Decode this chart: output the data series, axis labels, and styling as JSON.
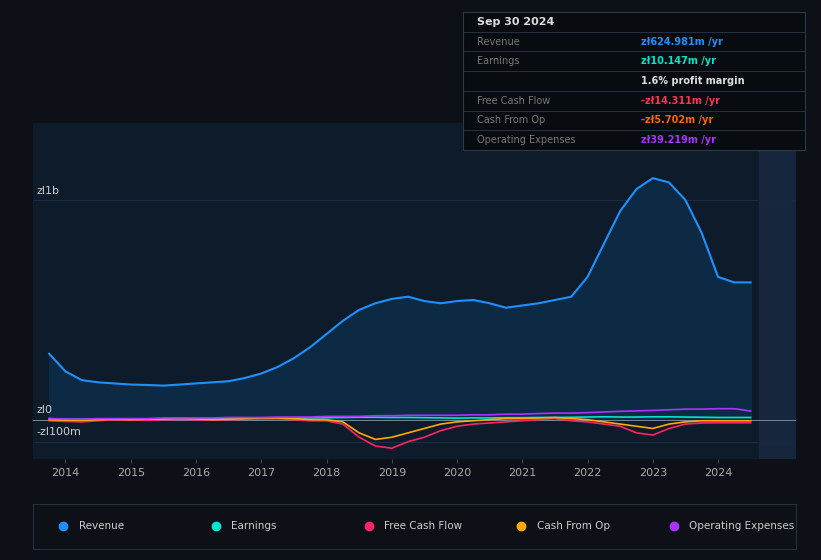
{
  "bg_color": "#0d1117",
  "plot_bg_color": "#0d1b2a",
  "grid_color": "#1e3048",
  "title_box": {
    "date": "Sep 30 2024",
    "box_bg": "#080c10",
    "box_border": "#2a3a4a",
    "label_color": "#777777",
    "title_color": "#dddddd"
  },
  "ytick_labels": [
    "zl1b",
    "zl0",
    "-zl100m"
  ],
  "ytick_values": [
    1000,
    0,
    -100
  ],
  "xtick_labels": [
    "2014",
    "2015",
    "2016",
    "2017",
    "2018",
    "2019",
    "2020",
    "2021",
    "2022",
    "2023",
    "2024"
  ],
  "ylim": [
    -180,
    1350
  ],
  "xlim": [
    2013.5,
    2025.2
  ],
  "series_Revenue_color": "#1e90ff",
  "series_Revenue_fill": "#0d2a45",
  "series_Earnings_color": "#00e5cc",
  "series_FCF_color": "#ff2266",
  "series_CashOp_color": "#ffaa00",
  "series_OpEx_color": "#aa33ff",
  "revenue_x": [
    2013.75,
    2014.0,
    2014.25,
    2014.5,
    2014.75,
    2015.0,
    2015.25,
    2015.5,
    2015.75,
    2016.0,
    2016.25,
    2016.5,
    2016.75,
    2017.0,
    2017.25,
    2017.5,
    2017.75,
    2018.0,
    2018.25,
    2018.5,
    2018.75,
    2019.0,
    2019.25,
    2019.5,
    2019.75,
    2020.0,
    2020.25,
    2020.5,
    2020.75,
    2021.0,
    2021.25,
    2021.5,
    2021.75,
    2022.0,
    2022.25,
    2022.5,
    2022.75,
    2023.0,
    2023.25,
    2023.5,
    2023.75,
    2024.0,
    2024.25,
    2024.5
  ],
  "revenue_y": [
    300,
    220,
    180,
    170,
    165,
    160,
    158,
    155,
    160,
    165,
    170,
    175,
    190,
    210,
    240,
    280,
    330,
    390,
    450,
    500,
    530,
    550,
    560,
    540,
    530,
    540,
    545,
    530,
    510,
    520,
    530,
    545,
    560,
    650,
    800,
    950,
    1050,
    1100,
    1080,
    1000,
    850,
    650,
    625,
    625
  ],
  "earnings_x": [
    2013.75,
    2014.0,
    2014.25,
    2014.5,
    2014.75,
    2015.0,
    2015.25,
    2015.5,
    2015.75,
    2016.0,
    2016.25,
    2016.5,
    2016.75,
    2017.0,
    2017.25,
    2017.5,
    2017.75,
    2018.0,
    2018.25,
    2018.5,
    2018.75,
    2019.0,
    2019.25,
    2019.5,
    2019.75,
    2020.0,
    2020.25,
    2020.5,
    2020.75,
    2021.0,
    2021.25,
    2021.5,
    2021.75,
    2022.0,
    2022.25,
    2022.5,
    2022.75,
    2023.0,
    2023.25,
    2023.5,
    2023.75,
    2024.0,
    2024.25,
    2024.5
  ],
  "earnings_y": [
    5,
    2,
    2,
    3,
    2,
    2,
    3,
    3,
    2,
    3,
    4,
    4,
    5,
    5,
    6,
    7,
    8,
    9,
    10,
    11,
    11,
    10,
    10,
    9,
    8,
    7,
    8,
    8,
    9,
    9,
    10,
    10,
    11,
    12,
    13,
    12,
    12,
    13,
    13,
    12,
    11,
    10,
    10,
    10
  ],
  "fcf_x": [
    2013.75,
    2014.0,
    2014.25,
    2014.5,
    2014.75,
    2015.0,
    2015.25,
    2015.5,
    2015.75,
    2016.0,
    2016.25,
    2016.5,
    2016.75,
    2017.0,
    2017.25,
    2017.5,
    2017.75,
    2018.0,
    2018.25,
    2018.5,
    2018.75,
    2019.0,
    2019.25,
    2019.5,
    2019.75,
    2020.0,
    2020.25,
    2020.5,
    2020.75,
    2021.0,
    2021.25,
    2021.5,
    2021.75,
    2022.0,
    2022.25,
    2022.5,
    2022.75,
    2023.0,
    2023.25,
    2023.5,
    2023.75,
    2024.0,
    2024.25,
    2024.5
  ],
  "fcf_y": [
    -5,
    -8,
    -10,
    -5,
    0,
    -2,
    -3,
    0,
    2,
    0,
    -2,
    0,
    2,
    5,
    5,
    0,
    -5,
    -5,
    -20,
    -80,
    -120,
    -130,
    -100,
    -80,
    -50,
    -30,
    -20,
    -15,
    -10,
    -5,
    0,
    5,
    -5,
    -10,
    -20,
    -30,
    -60,
    -70,
    -40,
    -20,
    -15,
    -14,
    -14,
    -14
  ],
  "cop_x": [
    2013.75,
    2014.0,
    2014.25,
    2014.5,
    2014.75,
    2015.0,
    2015.25,
    2015.5,
    2015.75,
    2016.0,
    2016.25,
    2016.5,
    2016.75,
    2017.0,
    2017.25,
    2017.5,
    2017.75,
    2018.0,
    2018.25,
    2018.5,
    2018.75,
    2019.0,
    2019.25,
    2019.5,
    2019.75,
    2020.0,
    2020.25,
    2020.5,
    2020.75,
    2021.0,
    2021.25,
    2021.5,
    2021.75,
    2022.0,
    2022.25,
    2022.5,
    2022.75,
    2023.0,
    2023.25,
    2023.5,
    2023.75,
    2024.0,
    2024.25,
    2024.5
  ],
  "cop_y": [
    0,
    -2,
    -3,
    0,
    2,
    0,
    2,
    3,
    5,
    3,
    0,
    2,
    5,
    8,
    8,
    5,
    0,
    0,
    -10,
    -60,
    -90,
    -80,
    -60,
    -40,
    -20,
    -10,
    -5,
    0,
    5,
    5,
    8,
    10,
    5,
    0,
    -10,
    -20,
    -30,
    -40,
    -20,
    -10,
    -5,
    -5,
    -5,
    -5
  ],
  "opex_x": [
    2013.75,
    2014.0,
    2014.25,
    2014.5,
    2014.75,
    2015.0,
    2015.25,
    2015.5,
    2015.75,
    2016.0,
    2016.25,
    2016.5,
    2016.75,
    2017.0,
    2017.25,
    2017.5,
    2017.75,
    2018.0,
    2018.25,
    2018.5,
    2018.75,
    2019.0,
    2019.25,
    2019.5,
    2019.75,
    2020.0,
    2020.25,
    2020.5,
    2020.75,
    2021.0,
    2021.25,
    2021.5,
    2021.75,
    2022.0,
    2022.25,
    2022.5,
    2022.75,
    2023.0,
    2023.25,
    2023.5,
    2023.75,
    2024.0,
    2024.25,
    2024.5
  ],
  "opex_y": [
    5,
    3,
    2,
    5,
    5,
    5,
    5,
    8,
    8,
    8,
    8,
    10,
    10,
    10,
    12,
    12,
    12,
    15,
    15,
    15,
    18,
    18,
    20,
    20,
    20,
    20,
    22,
    22,
    25,
    25,
    28,
    30,
    30,
    32,
    35,
    38,
    40,
    42,
    45,
    48,
    48,
    50,
    50,
    39
  ],
  "legend": [
    {
      "label": "Revenue",
      "color": "#1e90ff"
    },
    {
      "label": "Earnings",
      "color": "#00e5cc"
    },
    {
      "label": "Free Cash Flow",
      "color": "#ff2266"
    },
    {
      "label": "Cash From Op",
      "color": "#ffaa00"
    },
    {
      "label": "Operating Expenses",
      "color": "#aa33ff"
    }
  ]
}
